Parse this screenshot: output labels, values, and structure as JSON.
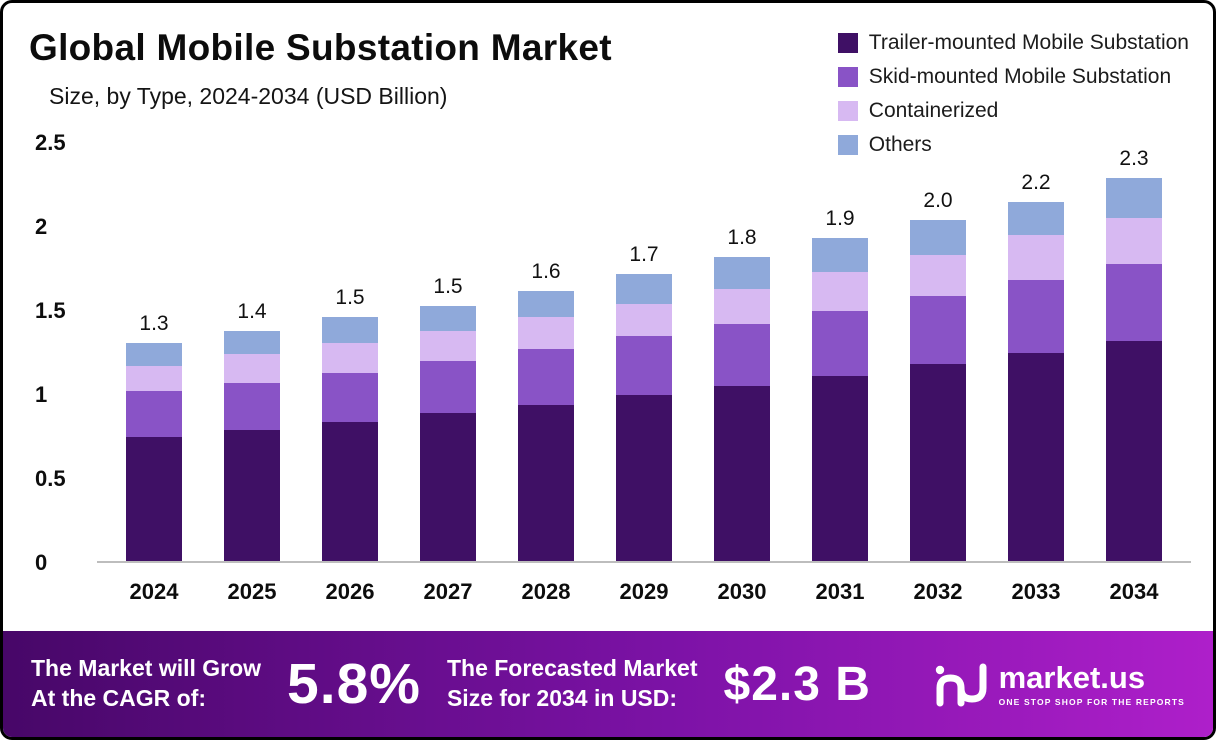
{
  "header": {
    "title": "Global Mobile Substation Market",
    "subtitle": "Size, by Type, 2024-2034 (USD Billion)"
  },
  "chart_data": {
    "type": "bar",
    "stacked": true,
    "title": "Global Mobile Substation Market Size, by Type, 2024-2034 (USD Billion)",
    "categories": [
      "2024",
      "2025",
      "2026",
      "2027",
      "2028",
      "2029",
      "2030",
      "2031",
      "2032",
      "2033",
      "2034"
    ],
    "series": [
      {
        "name": "Trailer-mounted Mobile Substation",
        "color": "#3f1065",
        "values": [
          0.74,
          0.78,
          0.83,
          0.88,
          0.93,
          0.99,
          1.04,
          1.1,
          1.17,
          1.24,
          1.31
        ]
      },
      {
        "name": "Skid-mounted Mobile Substation",
        "color": "#8953c6",
        "values": [
          0.27,
          0.28,
          0.29,
          0.31,
          0.33,
          0.35,
          0.37,
          0.39,
          0.41,
          0.43,
          0.46
        ]
      },
      {
        "name": "Containerized",
        "color": "#d7b9f2",
        "values": [
          0.15,
          0.17,
          0.18,
          0.18,
          0.19,
          0.19,
          0.21,
          0.23,
          0.24,
          0.27,
          0.27
        ]
      },
      {
        "name": "Others",
        "color": "#8fa9da",
        "values": [
          0.14,
          0.14,
          0.15,
          0.15,
          0.16,
          0.18,
          0.19,
          0.2,
          0.21,
          0.2,
          0.24
        ]
      }
    ],
    "total_labels": [
      "1.3",
      "1.4",
      "1.5",
      "1.5",
      "1.6",
      "1.7",
      "1.8",
      "1.9",
      "2.0",
      "2.2",
      "2.3"
    ],
    "ylim": [
      0,
      2.5
    ],
    "ytick_labels": [
      "0",
      "0.5",
      "1",
      "1.5",
      "2",
      "2.5"
    ],
    "ytick_values": [
      0,
      0.5,
      1,
      1.5,
      2,
      2.5
    ],
    "grid": false,
    "legend_position": "top-right"
  },
  "banner": {
    "growth_label_line1": "The Market will Grow",
    "growth_label_line2": "At the CAGR of:",
    "cagr_value": "5.8%",
    "forecast_label_line1": "The Forecasted Market",
    "forecast_label_line2": "Size for 2034 in USD:",
    "forecast_value": "$2.3 B",
    "brand_name": "market.us",
    "brand_tagline": "ONE STOP SHOP FOR THE REPORTS"
  }
}
